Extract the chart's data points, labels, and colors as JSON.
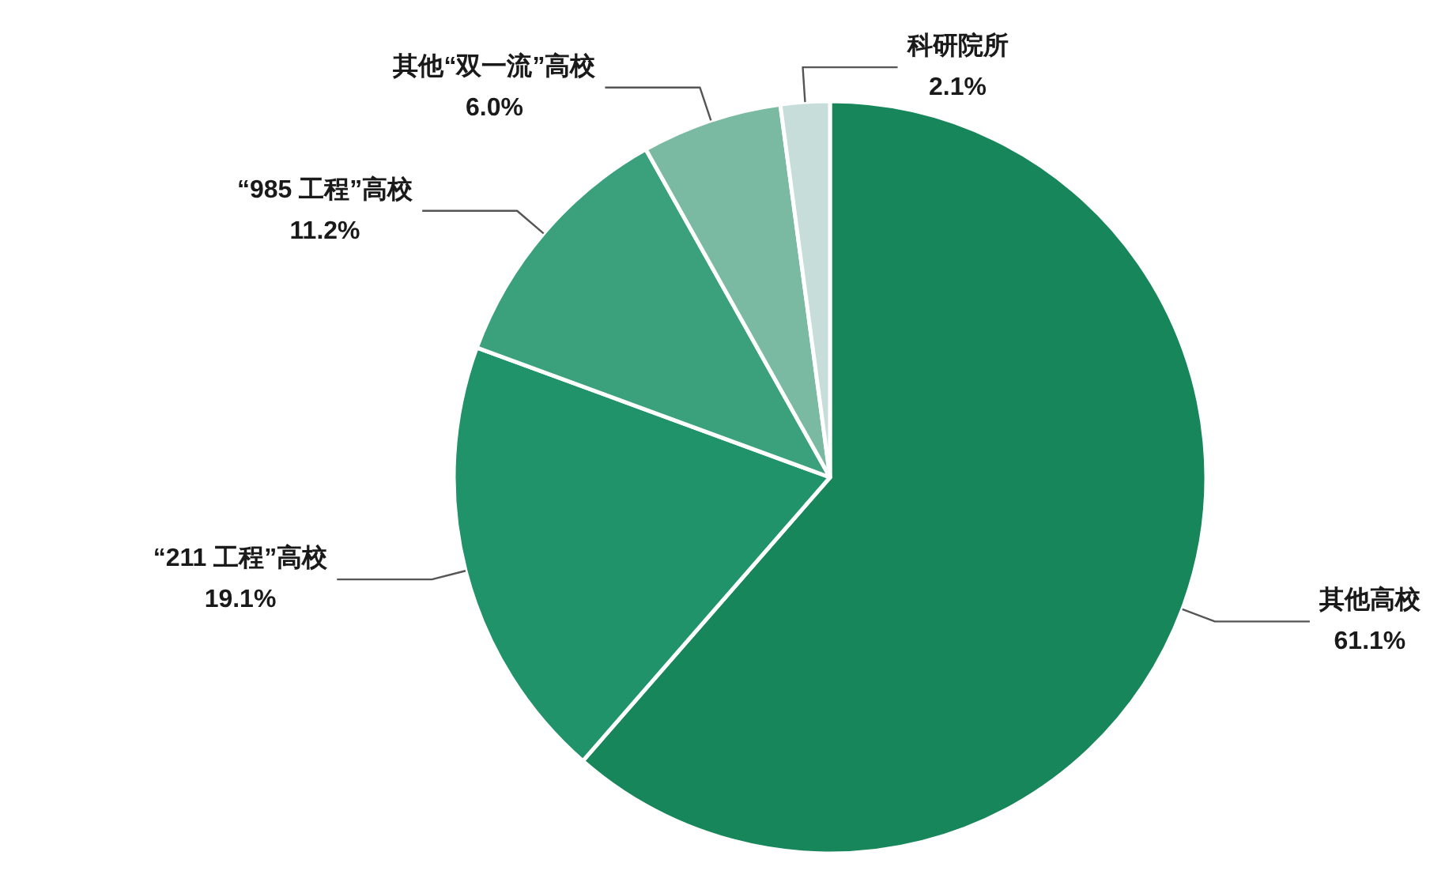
{
  "chart_data": {
    "type": "pie",
    "categories": [
      "其他高校",
      "“211 工程”高校",
      "“985 工程”高校",
      "其他“双一流”高校",
      "科研院所"
    ],
    "values": [
      61.1,
      19.1,
      11.2,
      6.0,
      2.1
    ],
    "value_labels": [
      "61.1%",
      "19.1%",
      "11.2%",
      "6.0%",
      "2.1%"
    ],
    "colors": [
      "#17865b",
      "#20936a",
      "#3ba17c",
      "#7bbaa2",
      "#c6ddd9"
    ]
  }
}
